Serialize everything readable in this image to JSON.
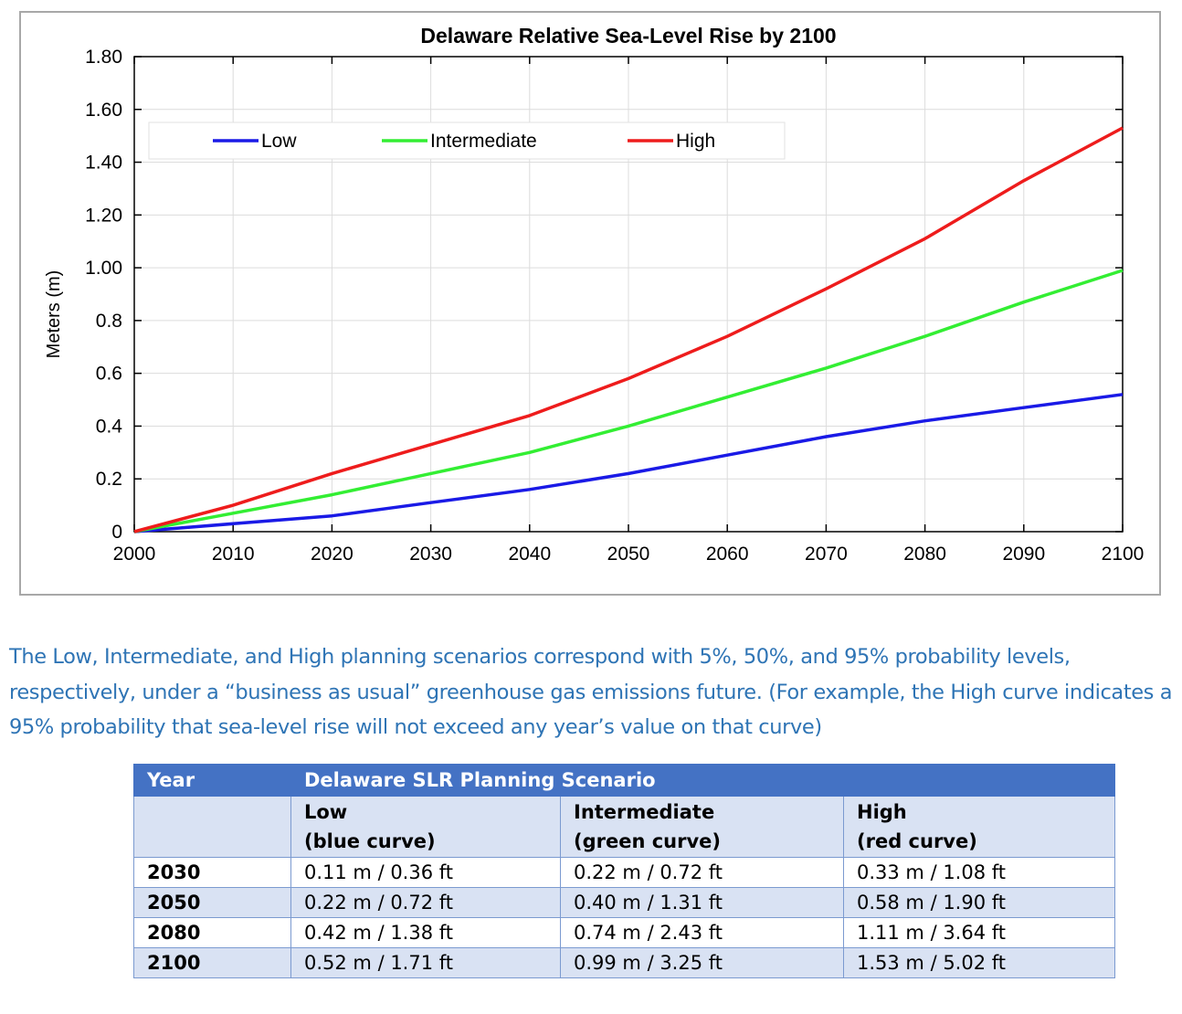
{
  "chart_data": {
    "type": "line",
    "title": "Delaware Relative Sea-Level Rise by 2100",
    "xlabel": "",
    "ylabel": "Meters (m)",
    "x": [
      2000,
      2010,
      2020,
      2030,
      2040,
      2050,
      2060,
      2070,
      2080,
      2090,
      2100
    ],
    "xlim": [
      2000,
      2100
    ],
    "ylim": [
      0,
      1.8
    ],
    "x_ticks": [
      "2000",
      "2010",
      "2020",
      "2030",
      "2040",
      "2050",
      "2060",
      "2070",
      "2080",
      "2090",
      "2100"
    ],
    "y_ticks": [
      {
        "value": 0,
        "label": "0"
      },
      {
        "value": 0.2,
        "label": "0.2"
      },
      {
        "value": 0.4,
        "label": "0.4"
      },
      {
        "value": 0.6,
        "label": "0.6"
      },
      {
        "value": 0.8,
        "label": "0.8"
      },
      {
        "value": 1.0,
        "label": "1.00"
      },
      {
        "value": 1.2,
        "label": "1.20"
      },
      {
        "value": 1.4,
        "label": "1.40"
      },
      {
        "value": 1.6,
        "label": "1.60"
      },
      {
        "value": 1.8,
        "label": "1.80"
      }
    ],
    "grid": true,
    "legend_position": "top-left",
    "series": [
      {
        "name": "Low",
        "color": "#1a1ae6",
        "values": [
          0,
          0.03,
          0.06,
          0.11,
          0.16,
          0.22,
          0.29,
          0.36,
          0.42,
          0.47,
          0.52
        ]
      },
      {
        "name": "Intermediate",
        "color": "#33ee33",
        "values": [
          0,
          0.07,
          0.14,
          0.22,
          0.3,
          0.4,
          0.51,
          0.62,
          0.74,
          0.87,
          0.99
        ]
      },
      {
        "name": "High",
        "color": "#ee1c1c",
        "values": [
          0,
          0.1,
          0.22,
          0.33,
          0.44,
          0.58,
          0.74,
          0.92,
          1.11,
          1.33,
          1.53
        ]
      }
    ]
  },
  "caption": "The Low, Intermediate, and High planning scenarios correspond with 5%, 50%, and 95% probability levels, respectively, under a “business as usual” greenhouse gas emissions future.  (For example, the High curve indicates a 95% probability that sea-level rise will not exceed any year’s value on that curve)",
  "table": {
    "header_year": "Year",
    "header_scenario": "Delaware SLR Planning Scenario",
    "subheaders": [
      {
        "name": "Low",
        "note": "(blue curve)"
      },
      {
        "name": "Intermediate",
        "note": "(green curve)"
      },
      {
        "name": "High",
        "note": "(red curve)"
      }
    ],
    "rows": [
      {
        "year": "2030",
        "low": "0.11 m / 0.36 ft",
        "intermediate": "0.22 m / 0.72 ft",
        "high": "0.33 m / 1.08 ft"
      },
      {
        "year": "2050",
        "low": "0.22 m / 0.72 ft",
        "intermediate": "0.40 m / 1.31 ft",
        "high": "0.58 m / 1.90 ft"
      },
      {
        "year": "2080",
        "low": "0.42 m / 1.38 ft",
        "intermediate": "0.74 m / 2.43 ft",
        "high": "1.11 m / 3.64 ft"
      },
      {
        "year": "2100",
        "low": "0.52 m / 1.71 ft",
        "intermediate": "0.99 m / 3.25 ft",
        "high": "1.53 m / 5.02 ft"
      }
    ]
  }
}
